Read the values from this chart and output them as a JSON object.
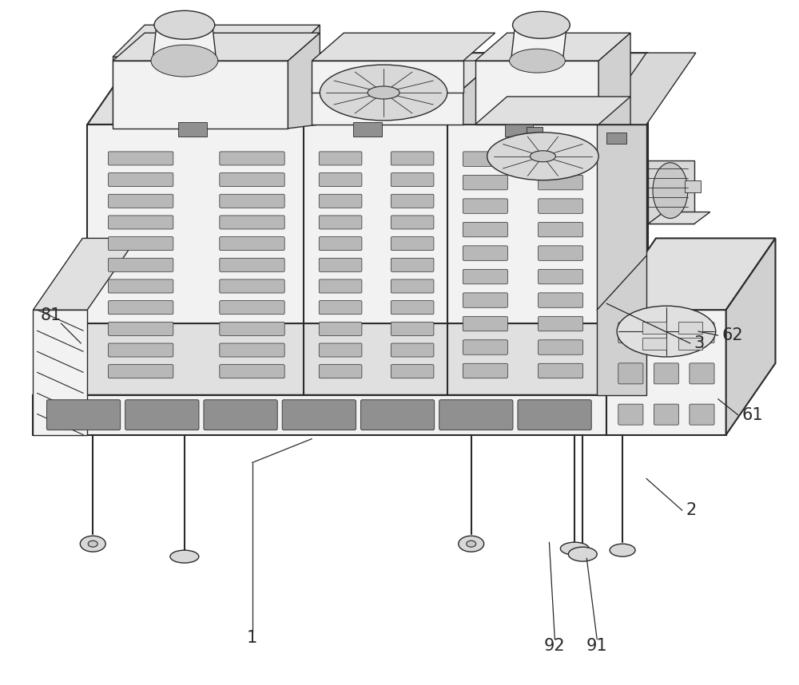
{
  "background_color": "#ffffff",
  "line_color": "#2a2a2a",
  "lw": 1.0,
  "lw_thick": 1.5,
  "figsize": [
    10.0,
    8.58
  ],
  "dpi": 100,
  "label_fontsize": 15,
  "colors": {
    "face_front": "#f2f2f2",
    "face_top": "#e0e0e0",
    "face_right": "#d0d0d0",
    "face_dark": "#c0c0c0",
    "vent_fill": "#b8b8b8",
    "vent_dark": "#909090",
    "white": "#ffffff",
    "light_gray": "#e8e8e8",
    "mid_gray": "#d8d8d8",
    "dark_gray": "#c8c8c8"
  }
}
